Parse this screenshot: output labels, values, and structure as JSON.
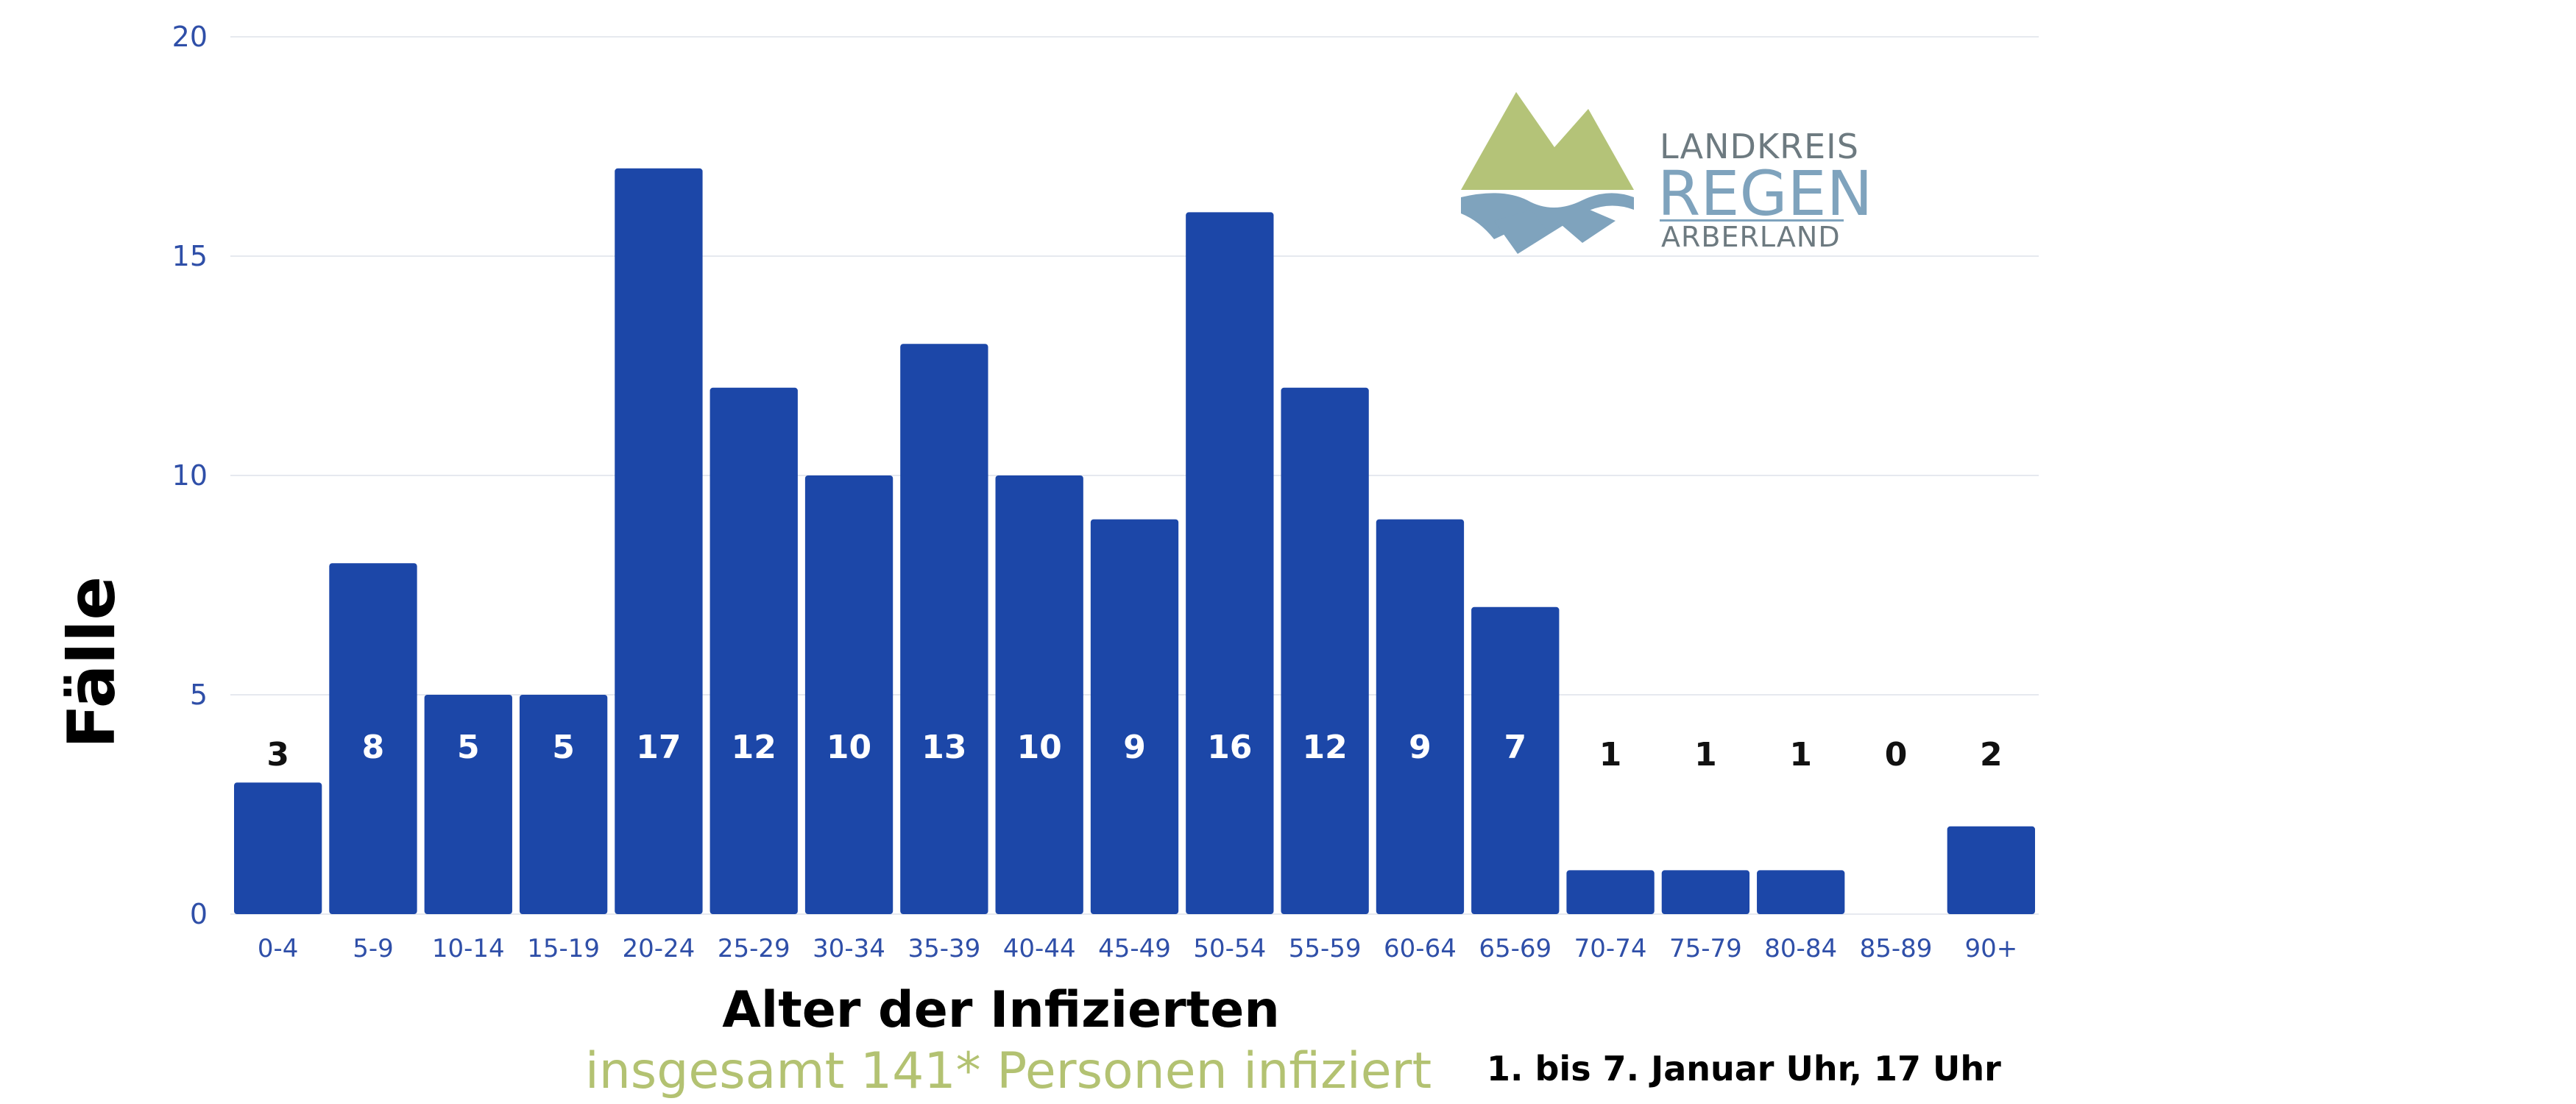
{
  "chart_data": {
    "type": "bar",
    "categories": [
      "0-4",
      "5-9",
      "10-14",
      "15-19",
      "20-24",
      "25-29",
      "30-34",
      "35-39",
      "40-44",
      "45-49",
      "50-54",
      "55-59",
      "60-64",
      "65-69",
      "70-74",
      "75-79",
      "80-84",
      "85-89",
      "90+"
    ],
    "values": [
      3,
      8,
      5,
      5,
      17,
      12,
      10,
      13,
      10,
      9,
      16,
      12,
      9,
      7,
      1,
      1,
      1,
      0,
      2
    ],
    "ylabel": "Fälle",
    "xlabel": "Alter der Infizierten",
    "subtitle": "insgesamt 141* Personen infiziert",
    "note": "1. bis 7. Januar Uhr, 17 Uhr",
    "ylim": [
      0,
      20
    ],
    "yticks": [
      0,
      5,
      10,
      15,
      20
    ],
    "grid": true,
    "colors": {
      "bar": "#1c47a8",
      "grid": "#e6e9ef",
      "tick": "#2f4fa8",
      "subtitle": "#b3c272"
    }
  },
  "logo": {
    "line1": "LANDKREIS",
    "line2": "REGEN",
    "line3": "ARBERLAND",
    "colors": {
      "mountain": "#b4c378",
      "water": "#7fa3bd",
      "text": "#6d7a80"
    }
  }
}
